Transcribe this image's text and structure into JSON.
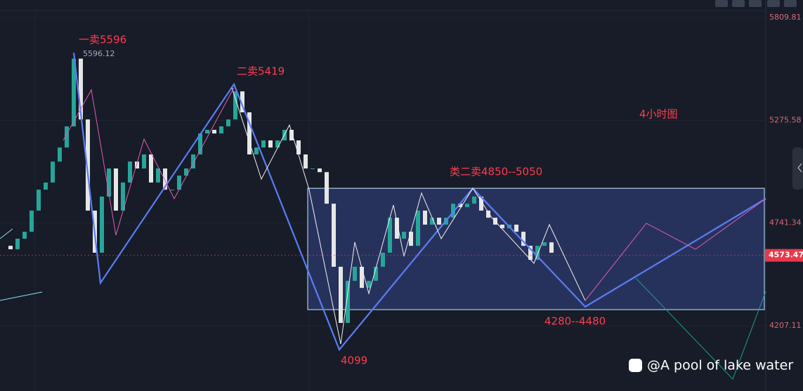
{
  "chart_data": {
    "type": "candlestick",
    "ylim": [
      3868,
      5901
    ],
    "yticks": [
      4207.11,
      4741.34,
      5275.58,
      5809.81
    ],
    "xlim": [
      0,
      114.3
    ],
    "grid": true,
    "up_color": "#26a69a",
    "down_color": "#e6e6e6",
    "close": [
      4623,
      4605,
      4660,
      4696,
      4806,
      4915,
      4952,
      5061,
      5134,
      5244,
      5596,
      5280,
      4806,
      4587,
      4879,
      5025,
      4806,
      4952,
      5061,
      5025,
      5098,
      4952,
      5025,
      4915,
      4915,
      4988,
      5025,
      5098,
      5207,
      5226,
      5207,
      5244,
      5280,
      5426,
      5317,
      5098,
      5134,
      5171,
      5134,
      5171,
      5226,
      5171,
      5098,
      5025,
      5025,
      5006,
      4842,
      4514,
      4222,
      4441,
      4514,
      4404,
      4441,
      4514,
      4587,
      4769,
      4660,
      4696,
      4623,
      4806,
      4733,
      4769,
      4733,
      4769,
      4842,
      4824,
      4842,
      4879,
      4806,
      4769,
      4733,
      4714,
      4733,
      4696,
      4623,
      4550,
      4623,
      4641,
      4587
    ],
    "series": [
      {
        "color": "#5b7cf5",
        "x": [
          10.5,
          14.3,
          33.3,
          48.3,
          67.3,
          83.3,
          109
        ],
        "values": [
          5627,
          4430,
          5463,
          4083,
          4922,
          4306,
          4868
        ]
      },
      {
        "color": "#f2f2f2",
        "x": [
          33,
          37.2,
          41.2,
          44,
          48.5,
          50.5,
          52.5,
          56,
          57.5,
          60,
          62.8,
          67.3,
          70,
          76,
          78.2,
          83.3
        ],
        "values": [
          5445,
          4970,
          5251,
          4915,
          4112,
          4642,
          4375,
          4835,
          4568,
          4897,
          4660,
          4922,
          4769,
          4532,
          4733,
          4338
        ]
      },
      {
        "color": "#e45bb5",
        "x": [
          9,
          13,
          16.5,
          20.5,
          24.8,
          33.3
        ],
        "values": [
          5171,
          5434,
          4678,
          5178,
          4868,
          5445
        ]
      },
      {
        "color": "#e45bb5",
        "x": [
          83.3,
          92,
          99,
          109
        ],
        "values": [
          4338,
          4740,
          4605,
          4868
        ]
      },
      {
        "color": "#1f9e8c",
        "x": [
          90.5,
          104.3,
          109
        ],
        "values": [
          4455,
          3930,
          4386
        ]
      }
    ],
    "zone": {
      "x": [
        43.8,
        108.8
      ],
      "values": [
        4922,
        4291
      ],
      "color": "#2e3a6e"
    },
    "last_price": 4573.47,
    "peak_price": 5596.12,
    "annotations": [
      "一卖5596",
      "二卖5419",
      "4小时图",
      "类二卖4850--5050",
      "4280--4480",
      "4099"
    ],
    "watermark": "@A pool of lake water"
  }
}
